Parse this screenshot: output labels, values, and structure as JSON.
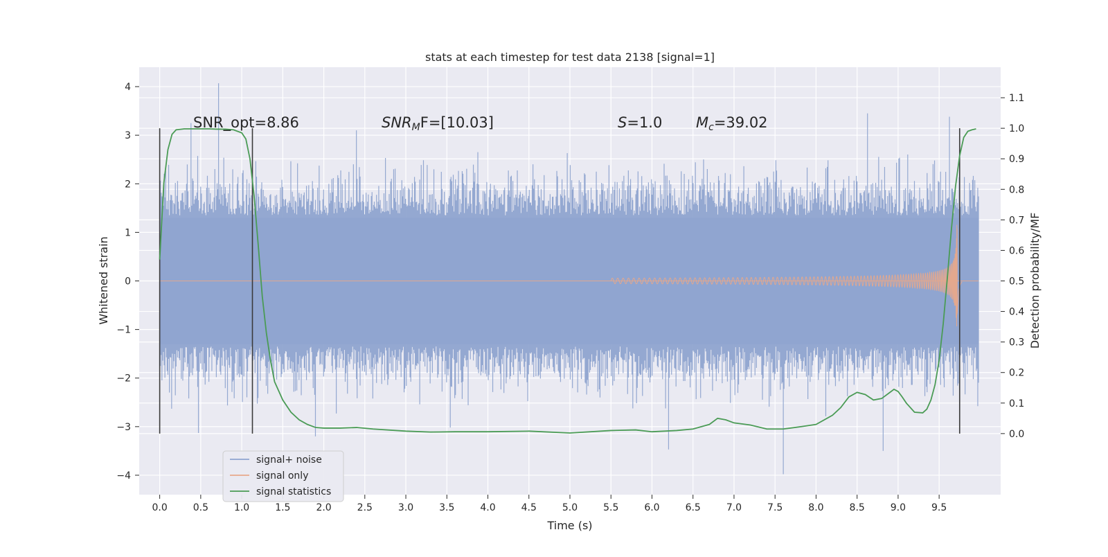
{
  "chart_data": {
    "type": "line",
    "title": "stats at each timestep for test data 2138 [signal=1]",
    "xlabel": "Time (s)",
    "ylabel_left": "Whitened strain",
    "ylabel_right": "Detection probability/MF",
    "x_ticks": [
      "0.0",
      "0.5",
      "1.0",
      "1.5",
      "2.0",
      "2.5",
      "3.0",
      "3.5",
      "4.0",
      "4.5",
      "5.0",
      "5.5",
      "6.0",
      "6.5",
      "7.0",
      "7.5",
      "8.0",
      "8.5",
      "9.0",
      "9.5"
    ],
    "y_left_ticks": [
      "4",
      "3",
      "2",
      "1",
      "0",
      "−1",
      "−2",
      "−3",
      "−4"
    ],
    "y_right_ticks": [
      "1.1",
      "1.0",
      "0.9",
      "0.8",
      "0.7",
      "0.6",
      "0.5",
      "0.4",
      "0.3",
      "0.2",
      "0.1",
      "0.0"
    ],
    "xlim": [
      -0.25,
      10.25
    ],
    "ylim_left": [
      -4.4,
      4.4
    ],
    "ylim_right": [
      -0.2,
      1.2
    ],
    "grid": true,
    "legend_placement": "lower-left",
    "annotations": {
      "snr_opt": "SNR_opt=8.86",
      "snr_mf_main": "SNR",
      "snr_mf_sub": "M",
      "snr_mf_tail": "F=[10.03]",
      "s_main": "S",
      "s_tail": "=1.0",
      "mc_main": "M",
      "mc_sub": "c",
      "mc_tail": "=39.02"
    },
    "vertical_markers_x": [
      0.0,
      1.13,
      9.75
    ],
    "series": [
      {
        "name": "signal+ noise",
        "color": "#8fa4cf",
        "envelope": {
          "x_range": [
            0.0,
            9.98
          ],
          "upper_typical": 1.9,
          "lower_typical": -1.9,
          "peaks": [
            [
              0.72,
              4.07
            ],
            [
              8.63,
              3.45
            ],
            [
              9.63,
              3.38
            ],
            [
              0.38,
              3.25
            ],
            [
              2.4,
              3.1
            ],
            [
              6.2,
              -3.47
            ],
            [
              7.6,
              -3.98
            ],
            [
              8.82,
              -3.5
            ],
            [
              1.9,
              -3.2
            ],
            [
              0.47,
              -3.13
            ]
          ]
        }
      },
      {
        "name": "signal only",
        "color": "#e8a88a",
        "chirp": {
          "start": 5.5,
          "end": 9.72,
          "amplitude_end": 1.3,
          "ring_down_end": 9.78
        }
      },
      {
        "name": "signal statistics",
        "color": "#4a9b55",
        "x": [
          0.0,
          0.05,
          0.1,
          0.15,
          0.2,
          0.3,
          0.4,
          0.5,
          0.6,
          0.7,
          0.8,
          0.9,
          1.0,
          1.05,
          1.1,
          1.15,
          1.2,
          1.25,
          1.3,
          1.35,
          1.4,
          1.5,
          1.6,
          1.7,
          1.8,
          1.9,
          2.0,
          2.2,
          2.4,
          2.6,
          3.0,
          3.3,
          3.6,
          4.0,
          4.5,
          5.0,
          5.5,
          5.8,
          6.0,
          6.3,
          6.5,
          6.7,
          6.8,
          6.9,
          7.0,
          7.2,
          7.4,
          7.6,
          7.8,
          8.0,
          8.2,
          8.3,
          8.4,
          8.5,
          8.6,
          8.7,
          8.8,
          8.9,
          8.95,
          9.0,
          9.05,
          9.1,
          9.2,
          9.3,
          9.35,
          9.4,
          9.45,
          9.5,
          9.55,
          9.6,
          9.65,
          9.7,
          9.75,
          9.8,
          9.85,
          9.9,
          9.95
        ],
        "y": [
          0.57,
          0.82,
          0.93,
          0.98,
          0.995,
          0.998,
          0.998,
          0.998,
          0.998,
          0.997,
          0.997,
          0.995,
          0.985,
          0.965,
          0.9,
          0.78,
          0.62,
          0.45,
          0.33,
          0.24,
          0.17,
          0.11,
          0.07,
          0.045,
          0.03,
          0.02,
          0.018,
          0.018,
          0.02,
          0.015,
          0.008,
          0.005,
          0.006,
          0.006,
          0.008,
          0.002,
          0.01,
          0.012,
          0.006,
          0.01,
          0.015,
          0.03,
          0.05,
          0.045,
          0.035,
          0.028,
          0.015,
          0.015,
          0.022,
          0.03,
          0.06,
          0.085,
          0.12,
          0.135,
          0.128,
          0.11,
          0.115,
          0.135,
          0.145,
          0.138,
          0.12,
          0.1,
          0.07,
          0.068,
          0.08,
          0.11,
          0.16,
          0.24,
          0.36,
          0.51,
          0.67,
          0.81,
          0.91,
          0.97,
          0.99,
          0.995,
          0.998
        ]
      }
    ]
  }
}
